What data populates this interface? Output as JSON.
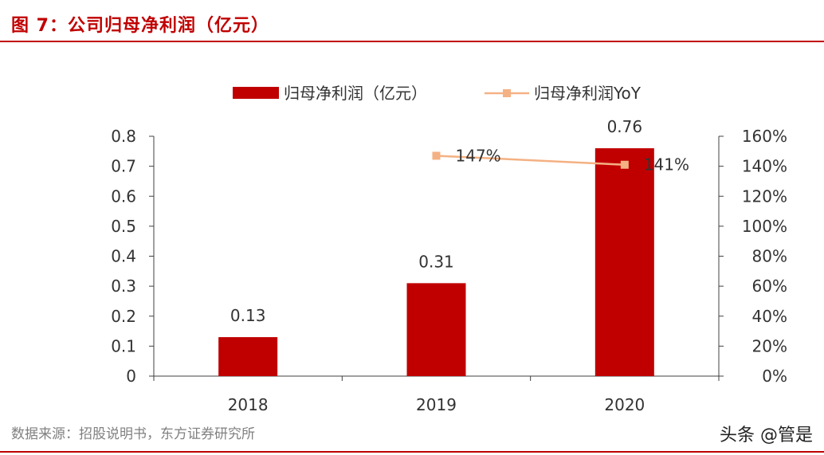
{
  "header": {
    "title": "图 7：公司归母净利润（亿元）"
  },
  "footer": {
    "source": "数据来源：招股说明书，东方证券研究所",
    "watermark": "头条 @管是"
  },
  "colors": {
    "bar": "#c00000",
    "line": "#f4b183",
    "accent": "#c00000",
    "axis": "#404040",
    "text": "#333333"
  },
  "chart_data": {
    "type": "bar",
    "title": "",
    "categories": [
      "2018",
      "2019",
      "2020"
    ],
    "series": [
      {
        "name": "归母净利润（亿元）",
        "type": "bar",
        "axis": "left",
        "values": [
          0.13,
          0.31,
          0.76
        ],
        "labels": [
          "0.13",
          "0.31",
          "0.76"
        ]
      },
      {
        "name": "归母净利润YoY",
        "type": "line",
        "axis": "right",
        "values": [
          null,
          147,
          141
        ],
        "labels": [
          "",
          "147%",
          "141%"
        ]
      }
    ],
    "y_left": {
      "range": [
        0,
        0.8
      ],
      "ticks": [
        "0",
        "0.1",
        "0.2",
        "0.3",
        "0.4",
        "0.5",
        "0.6",
        "0.7",
        "0.8"
      ]
    },
    "y_right": {
      "range": [
        0,
        160
      ],
      "ticks": [
        "0%",
        "20%",
        "40%",
        "60%",
        "80%",
        "100%",
        "120%",
        "140%",
        "160%"
      ]
    },
    "grid": false,
    "legend_position": "top"
  }
}
